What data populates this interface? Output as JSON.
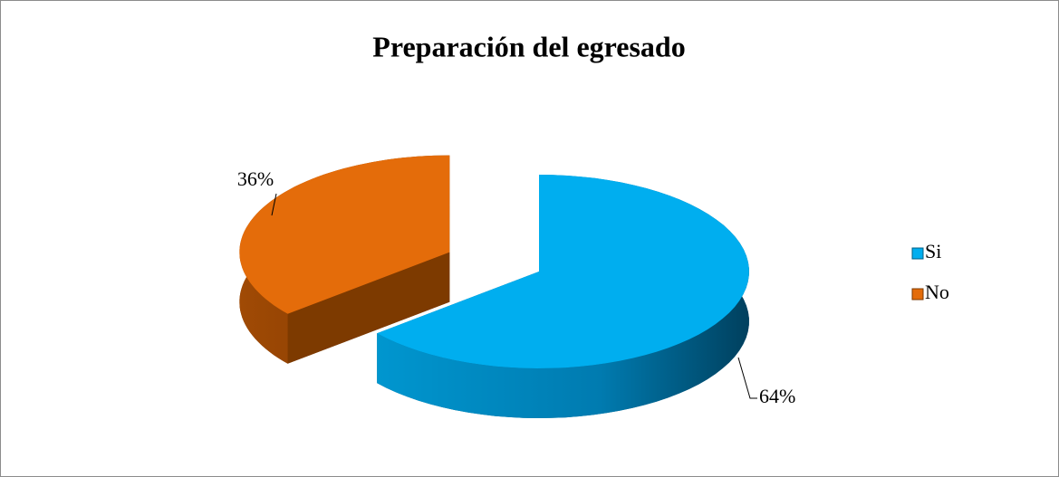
{
  "chart_data": {
    "type": "pie",
    "title": "Preparación del egresado",
    "categories": [
      "Si",
      "No"
    ],
    "values": [
      64,
      36
    ],
    "value_labels": [
      "64%",
      "36%"
    ],
    "colors": [
      "#00aeef",
      "#e46c0a"
    ],
    "legend": "right"
  }
}
